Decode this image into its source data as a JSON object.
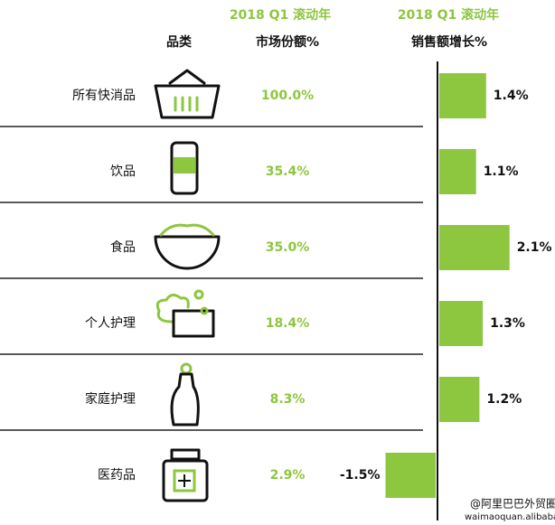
{
  "header": {
    "category": "品类",
    "share_period": "2018 Q1 滚动年",
    "share_title": "市场份额%",
    "growth_period": "2018 Q1 滚动年",
    "growth_title": "销售额增长%"
  },
  "rows": [
    {
      "category": "所有快消品",
      "share": "100.0%"
    },
    {
      "category": "饮品",
      "share": "35.4%"
    },
    {
      "category": "食品",
      "share": "35.0%"
    },
    {
      "category": "个人护理",
      "share": "18.4%"
    },
    {
      "category": "家庭护理",
      "share": "8.3%"
    },
    {
      "category": "医药品",
      "share": "2.9%"
    }
  ],
  "chart_data": {
    "type": "bar",
    "orientation": "horizontal",
    "color": "#8dc63f",
    "values": [
      1.4,
      1.1,
      2.1,
      1.3,
      1.2,
      -1.5
    ],
    "value_labels": [
      "1.4%",
      "1.1%",
      "2.1%",
      "1.3%",
      "1.2%",
      "-1.5%"
    ]
  },
  "footer": {
    "watermark": "@阿里巴巴外贸圈",
    "url": "waimaoquan.alibaba.com"
  }
}
